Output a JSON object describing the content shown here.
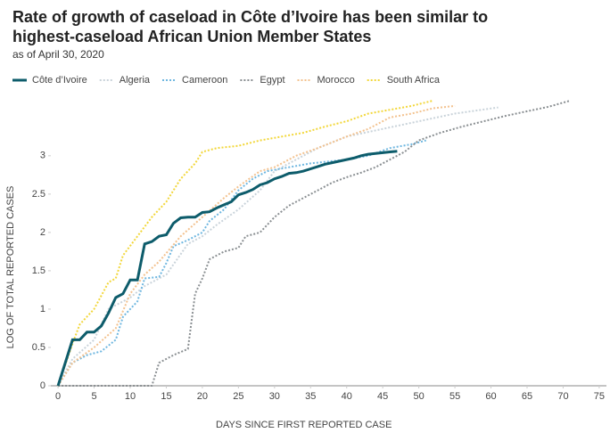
{
  "chart_data": {
    "type": "line",
    "title": "Rate of growth of caseload in Côte d’Ivoire has been similar to highest-caseload African Union Member States",
    "subtitle": "as of April 30, 2020",
    "x_label": "DAYS SINCE FIRST REPORTED CASE",
    "y_label": "LOG OF TOTAL REPORTED CASES",
    "xlim": [
      -1,
      76
    ],
    "xticks": [
      0,
      5,
      10,
      15,
      20,
      25,
      30,
      35,
      40,
      45,
      50,
      55,
      60,
      65,
      70,
      75
    ],
    "ylim": [
      0,
      3.8
    ],
    "yticks": [
      0,
      0.5,
      1,
      1.5,
      2,
      2.5,
      3
    ],
    "series": [
      {
        "name": "Côte d’Ivoire",
        "color": "#0d5c6b",
        "style": "solid",
        "x": [
          0,
          2,
          3,
          4,
          5,
          6,
          7,
          8,
          9,
          10,
          11,
          12,
          13,
          14,
          15,
          16,
          17,
          18,
          19,
          20,
          21,
          22,
          23,
          24,
          25,
          26,
          27,
          28,
          29,
          30,
          31,
          32,
          33,
          34,
          35,
          36,
          37,
          38,
          39,
          40,
          41,
          42,
          43,
          44,
          45,
          46,
          47
        ],
        "values": [
          0,
          0.6,
          0.6,
          0.7,
          0.7,
          0.78,
          0.95,
          1.15,
          1.2,
          1.38,
          1.38,
          1.85,
          1.88,
          1.95,
          1.97,
          2.12,
          2.19,
          2.2,
          2.2,
          2.26,
          2.27,
          2.32,
          2.36,
          2.4,
          2.49,
          2.52,
          2.56,
          2.62,
          2.65,
          2.7,
          2.73,
          2.77,
          2.78,
          2.8,
          2.83,
          2.86,
          2.89,
          2.91,
          2.93,
          2.95,
          2.97,
          3.0,
          3.02,
          3.03,
          3.04,
          3.05,
          3.06
        ]
      },
      {
        "name": "Algeria",
        "color": "#c9d3da",
        "style": "dotted",
        "x": [
          0,
          2,
          5,
          7,
          10,
          12,
          15,
          18,
          20,
          22,
          25,
          28,
          30,
          33,
          36,
          40,
          45,
          50,
          55,
          61
        ],
        "values": [
          0,
          0.35,
          0.6,
          1.0,
          1.15,
          1.3,
          1.45,
          1.85,
          1.95,
          2.1,
          2.3,
          2.55,
          2.8,
          2.95,
          3.1,
          3.25,
          3.35,
          3.45,
          3.55,
          3.63
        ]
      },
      {
        "name": "Cameroon",
        "color": "#6fb7e0",
        "style": "dotted",
        "x": [
          0,
          2,
          4,
          6,
          8,
          9,
          10,
          11,
          12,
          14,
          15,
          16,
          18,
          20,
          21,
          23,
          25,
          27,
          29,
          32,
          35,
          40,
          43,
          46,
          49,
          51
        ],
        "values": [
          0,
          0.3,
          0.4,
          0.45,
          0.6,
          0.9,
          1.0,
          1.1,
          1.4,
          1.42,
          1.6,
          1.82,
          1.9,
          2.0,
          2.15,
          2.3,
          2.55,
          2.7,
          2.8,
          2.85,
          2.9,
          2.95,
          3.0,
          3.1,
          3.15,
          3.2
        ]
      },
      {
        "name": "Egypt",
        "color": "#8a8f92",
        "style": "dotted",
        "x": [
          0,
          13,
          14,
          16,
          18,
          19,
          20,
          21,
          23,
          25,
          26,
          28,
          30,
          32,
          34,
          36,
          38,
          40,
          42,
          44,
          46,
          48,
          50,
          53,
          56,
          59,
          62,
          65,
          68,
          71
        ],
        "values": [
          0,
          0,
          0.3,
          0.4,
          0.48,
          1.2,
          1.4,
          1.65,
          1.75,
          1.8,
          1.95,
          2.0,
          2.2,
          2.35,
          2.45,
          2.55,
          2.65,
          2.72,
          2.78,
          2.85,
          2.95,
          3.05,
          3.2,
          3.3,
          3.38,
          3.45,
          3.52,
          3.58,
          3.64,
          3.72
        ]
      },
      {
        "name": "Morocco",
        "color": "#f3c28f",
        "style": "dotted",
        "x": [
          0,
          2,
          5,
          8,
          10,
          12,
          14,
          17,
          20,
          23,
          25,
          28,
          30,
          33,
          36,
          40,
          43,
          46,
          49,
          52,
          55
        ],
        "values": [
          0,
          0.3,
          0.5,
          0.75,
          1.2,
          1.45,
          1.62,
          1.95,
          2.2,
          2.45,
          2.6,
          2.8,
          2.85,
          3.0,
          3.1,
          3.25,
          3.35,
          3.5,
          3.55,
          3.62,
          3.65
        ]
      },
      {
        "name": "South Africa",
        "color": "#f2d73a",
        "style": "dotted",
        "x": [
          0,
          2,
          3,
          5,
          7,
          8,
          9,
          11,
          13,
          15,
          17,
          19,
          20,
          22,
          25,
          28,
          31,
          34,
          37,
          40,
          43,
          46,
          49,
          52
        ],
        "values": [
          0,
          0.55,
          0.8,
          1.0,
          1.35,
          1.4,
          1.7,
          1.95,
          2.2,
          2.4,
          2.7,
          2.9,
          3.05,
          3.1,
          3.13,
          3.2,
          3.25,
          3.3,
          3.38,
          3.45,
          3.55,
          3.6,
          3.65,
          3.72
        ]
      }
    ]
  }
}
